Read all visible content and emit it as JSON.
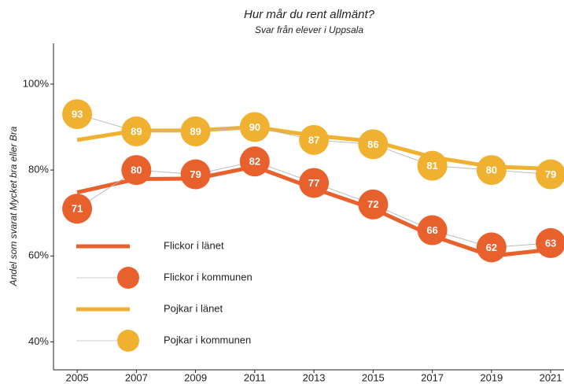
{
  "chart_data": {
    "type": "line",
    "title": "Hur mår du rent allmänt?",
    "subtitle": "Svar från elever i Uppsala",
    "ylabel": "Andel som svarat Mycket bra eller Bra",
    "x": [
      2005,
      2007,
      2009,
      2011,
      2013,
      2015,
      2017,
      2019,
      2021
    ],
    "xlim": [
      2004.2,
      2021.45
    ],
    "xticks": [
      2005,
      2007,
      2009,
      2011,
      2013,
      2015,
      2017,
      2019,
      2021
    ],
    "ylim": [
      33.5,
      109.5
    ],
    "yticks": [
      {
        "value": 40,
        "label": "40%"
      },
      {
        "value": 60,
        "label": "60%"
      },
      {
        "value": 80,
        "label": "80%"
      },
      {
        "value": 100,
        "label": "100%"
      }
    ],
    "grid": false,
    "series": [
      {
        "name": "Flickor i länet",
        "kind": "line",
        "color": "#e8602c",
        "values": [
          74.8,
          77.9,
          78,
          80.8,
          75.7,
          71,
          64.7,
          60,
          61.5
        ]
      },
      {
        "name": "Flickor i kommunen",
        "kind": "markers",
        "color": "#e8602c",
        "values": [
          71,
          80,
          79,
          82,
          77,
          72,
          66,
          62,
          63
        ]
      },
      {
        "name": "Pojkar i länet",
        "kind": "line",
        "color": "#f0b030",
        "values": [
          87,
          89.2,
          89.2,
          90,
          88,
          86.7,
          83,
          80.8,
          80.3
        ]
      },
      {
        "name": "Pojkar i kommunen",
        "kind": "markers",
        "color": "#f0b030",
        "values": [
          93,
          89,
          89,
          90,
          87,
          86,
          81,
          80,
          79
        ]
      }
    ]
  }
}
